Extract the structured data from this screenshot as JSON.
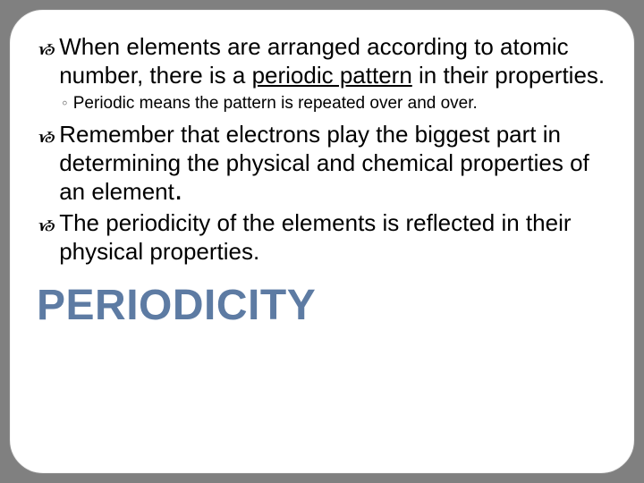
{
  "slide": {
    "background": "#808080",
    "card_bg": "#ffffff",
    "border_radius": 38,
    "bullets": [
      {
        "marker": "&#x13F9;",
        "text_pre": "When elements are arranged according to atomic number, there is a ",
        "underlined": "periodic pattern",
        "text_post": " in their properties."
      }
    ],
    "sub_bullet": {
      "marker": "◦",
      "text": "Periodic means the pattern is repeated over and over."
    },
    "bullets2": [
      {
        "marker": "&#x13F9;",
        "text": "Remember that electrons play the biggest part in determining the physical and chemical properties of an element",
        "big_period": "."
      },
      {
        "marker": "&#x13F9;",
        "text": "The periodicity of the elements is reflected in their physical properties."
      }
    ],
    "title": "PERIODICITY",
    "title_color": "#5d7ba3",
    "body_fontsize": 26,
    "sub_fontsize": 19,
    "title_fontsize": 48
  }
}
